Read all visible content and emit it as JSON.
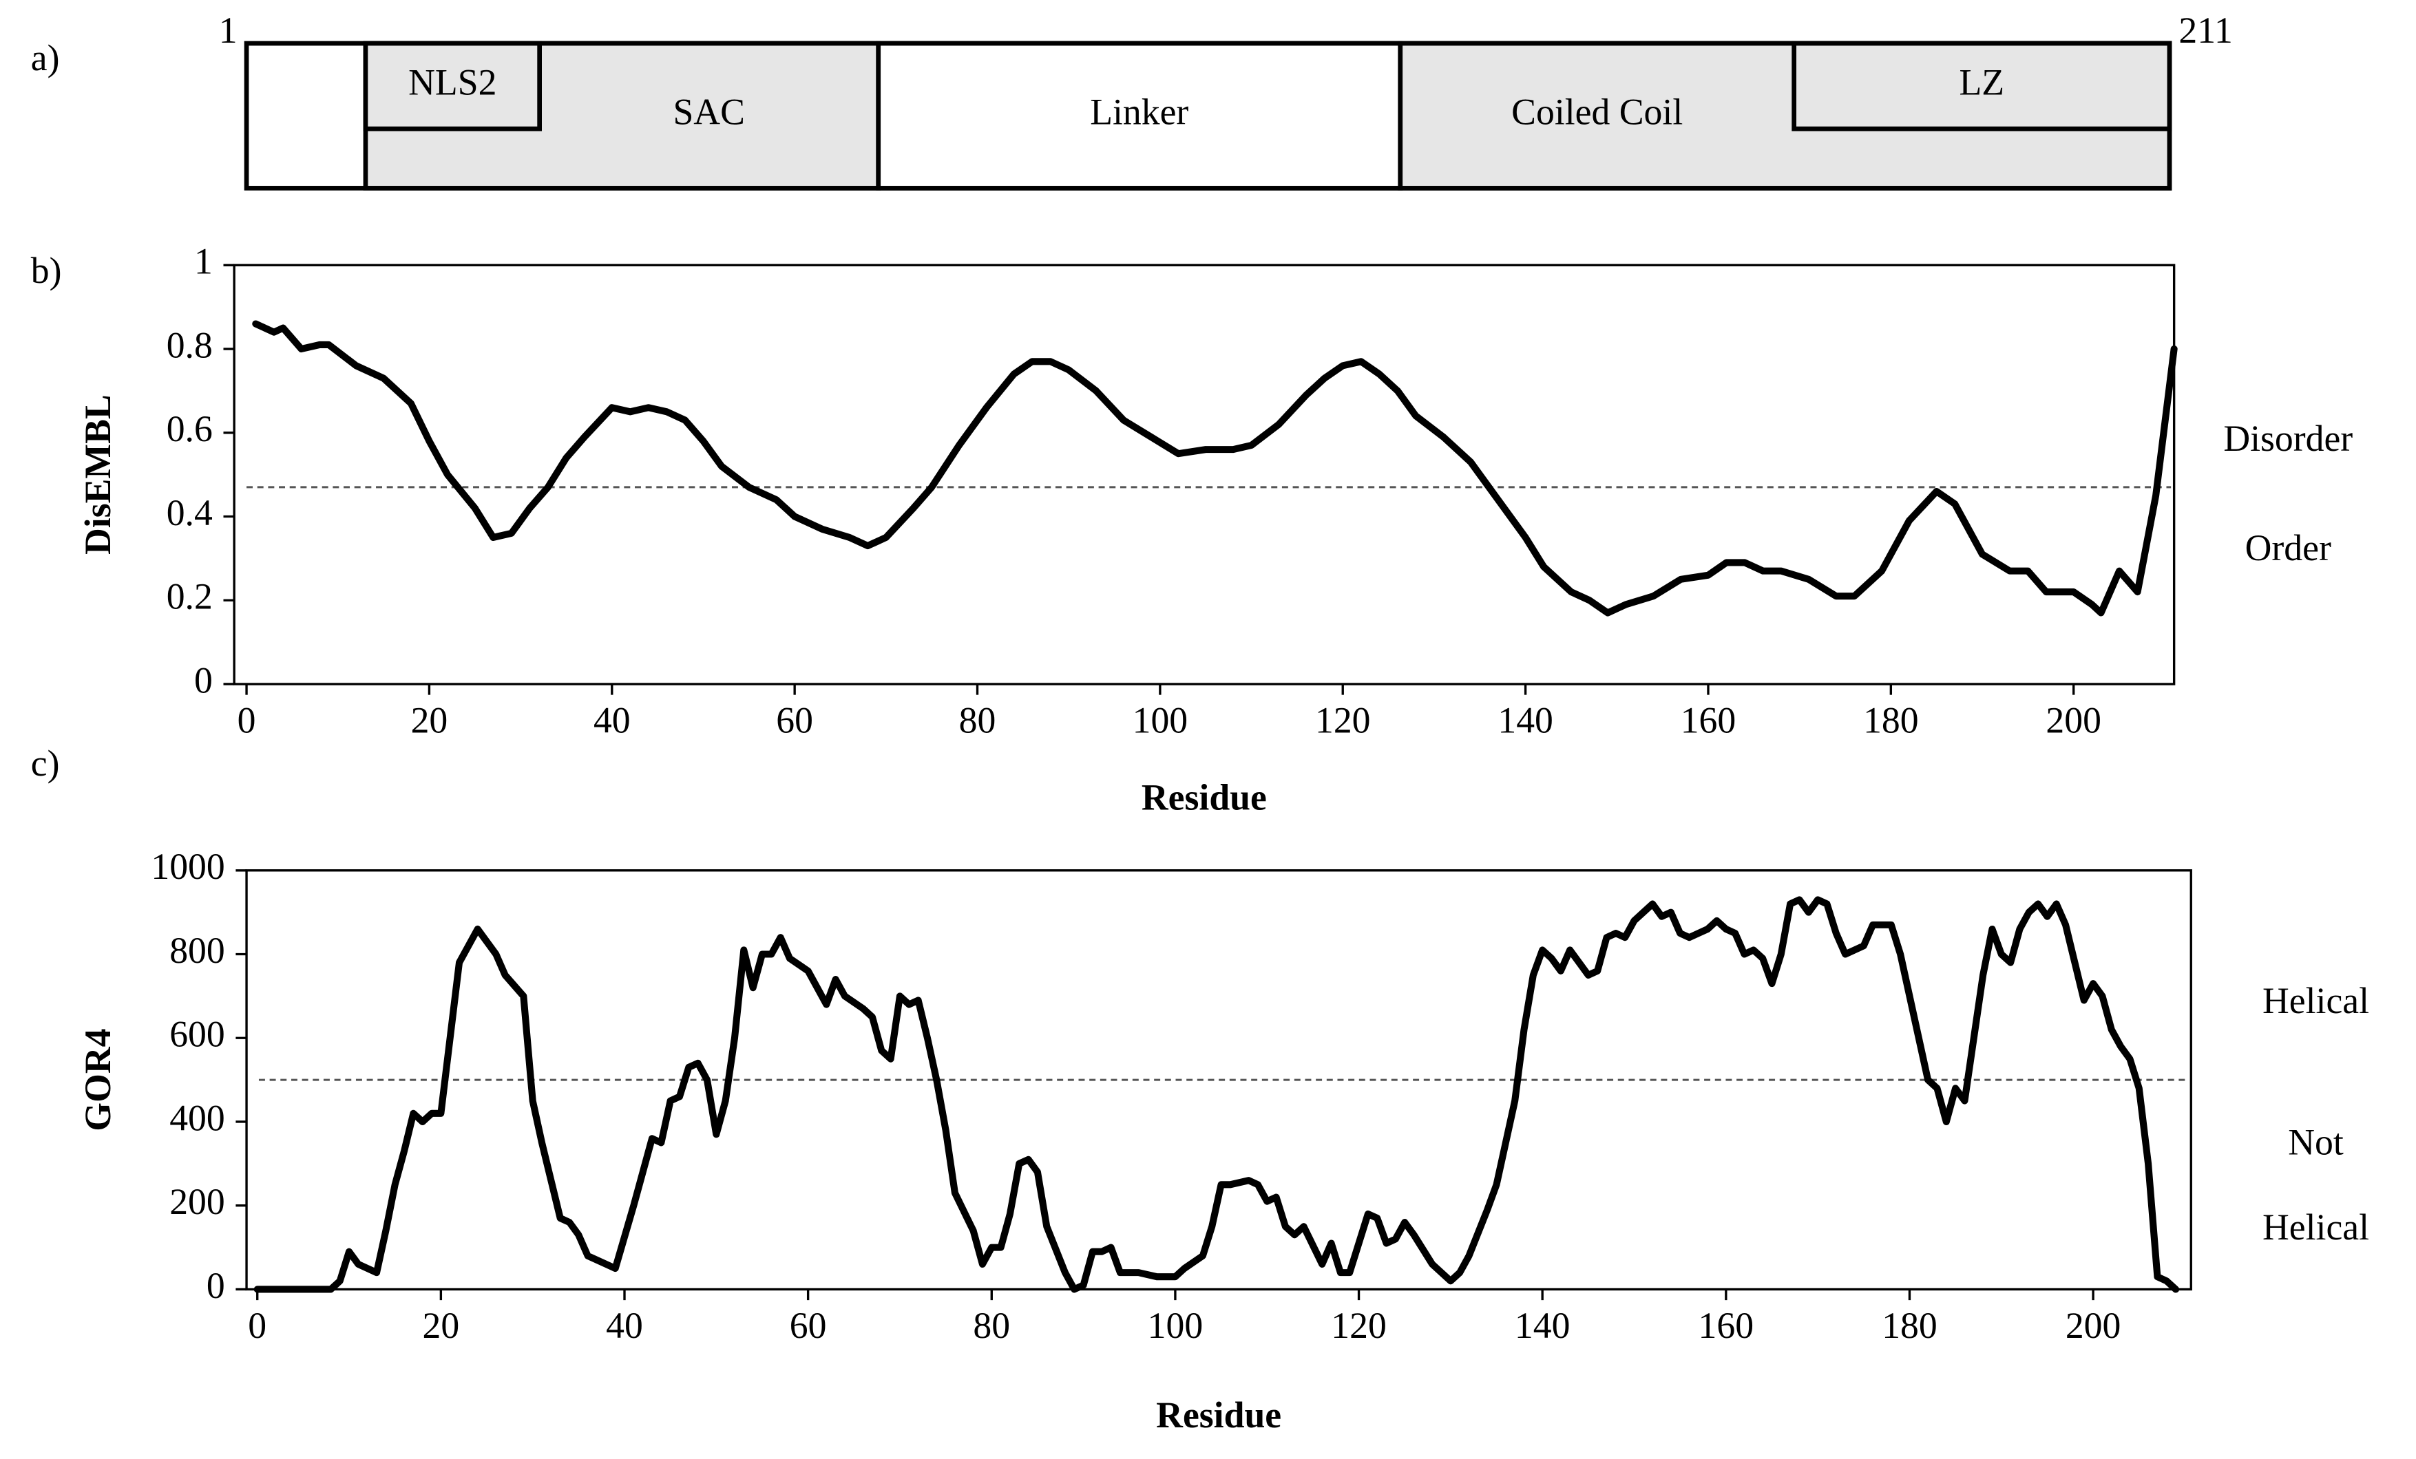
{
  "chart_data": [
    {
      "type": "domain-map",
      "panel_label": "a)",
      "xlim": [
        1,
        211
      ],
      "xticks": [
        1,
        211
      ],
      "domains": [
        {
          "name": "SAC",
          "start": 14,
          "end": 70,
          "color": "#e6e6e6",
          "inset": false
        },
        {
          "name": "NLS2",
          "start": 14,
          "end": 33,
          "color": "#e6e6e6",
          "inset": true
        },
        {
          "name": "Linker",
          "start": 70,
          "end": 127,
          "color": "#ffffff",
          "inset": false
        },
        {
          "name": "Coiled Coil",
          "start": 127,
          "end": 211,
          "color": "#e6e6e6",
          "inset": false
        },
        {
          "name": "LZ",
          "start": 170,
          "end": 211,
          "color": "#e6e6e6",
          "inset": true
        }
      ]
    },
    {
      "type": "line",
      "panel_label": "b)",
      "y_label": "DisEMBL",
      "x_label": "Residue",
      "xlim": [
        0,
        211
      ],
      "xticks": [
        0,
        20,
        40,
        60,
        80,
        100,
        120,
        140,
        160,
        180,
        200
      ],
      "ylim": [
        0,
        1
      ],
      "yticks": [
        0,
        0.2,
        0.4,
        0.6,
        0.8,
        1
      ],
      "threshold": 0.47,
      "upper_label": "Disorder",
      "lower_label": [
        "Order"
      ],
      "series": [
        {
          "color": "#000000",
          "x": [
            1,
            3,
            4,
            6,
            8,
            9,
            12,
            15,
            18,
            20,
            22,
            25,
            27,
            29,
            31,
            33,
            35,
            37,
            40,
            42,
            44,
            46,
            48,
            50,
            52,
            55,
            58,
            60,
            63,
            66,
            68,
            70,
            73,
            75,
            78,
            81,
            84,
            86,
            88,
            90,
            93,
            96,
            99,
            102,
            105,
            108,
            110,
            113,
            116,
            118,
            120,
            122,
            124,
            126,
            128,
            131,
            134,
            137,
            140,
            142,
            145,
            147,
            149,
            151,
            154,
            157,
            160,
            162,
            164,
            166,
            168,
            171,
            174,
            176,
            179,
            182,
            185,
            187,
            190,
            193,
            195,
            197,
            200,
            202,
            203,
            205,
            207,
            209,
            211
          ],
          "values": [
            0.86,
            0.84,
            0.85,
            0.8,
            0.81,
            0.81,
            0.76,
            0.73,
            0.67,
            0.58,
            0.5,
            0.42,
            0.35,
            0.36,
            0.42,
            0.47,
            0.54,
            0.59,
            0.66,
            0.65,
            0.66,
            0.65,
            0.63,
            0.58,
            0.52,
            0.47,
            0.44,
            0.4,
            0.37,
            0.35,
            0.33,
            0.35,
            0.42,
            0.47,
            0.57,
            0.66,
            0.74,
            0.77,
            0.77,
            0.75,
            0.7,
            0.63,
            0.59,
            0.55,
            0.56,
            0.56,
            0.57,
            0.62,
            0.69,
            0.73,
            0.76,
            0.77,
            0.74,
            0.7,
            0.64,
            0.59,
            0.53,
            0.44,
            0.35,
            0.28,
            0.22,
            0.2,
            0.17,
            0.19,
            0.21,
            0.25,
            0.26,
            0.29,
            0.29,
            0.27,
            0.27,
            0.25,
            0.21,
            0.21,
            0.27,
            0.39,
            0.46,
            0.43,
            0.31,
            0.27,
            0.27,
            0.22,
            0.22,
            0.19,
            0.17,
            0.27,
            0.22,
            0.45,
            0.8
          ]
        }
      ]
    },
    {
      "type": "line",
      "panel_label": "c)",
      "y_label": "GOR4",
      "x_label": "Residue",
      "xlim": [
        0,
        211
      ],
      "xticks": [
        0,
        20,
        40,
        60,
        80,
        100,
        120,
        140,
        160,
        180,
        200
      ],
      "ylim": [
        0,
        1000
      ],
      "yticks": [
        0,
        200,
        400,
        600,
        800,
        1000
      ],
      "threshold": 500,
      "upper_label": "Helical",
      "lower_label": [
        "Not",
        "Helical"
      ],
      "series": [
        {
          "color": "#000000",
          "x": [
            0,
            8,
            9,
            10,
            11,
            12,
            13,
            14,
            15,
            16,
            17,
            18,
            19,
            20,
            21,
            22,
            24,
            26,
            27,
            29,
            30,
            31,
            33,
            34,
            35,
            36,
            38,
            39,
            41,
            43,
            44,
            45,
            46,
            47,
            48,
            49,
            50,
            51,
            52,
            53,
            54,
            55,
            56,
            57,
            58,
            60,
            62,
            63,
            64,
            66,
            67,
            68,
            69,
            70,
            71,
            72,
            73,
            74,
            75,
            76,
            78,
            79,
            80,
            81,
            82,
            83,
            84,
            85,
            86,
            88,
            89,
            90,
            91,
            92,
            93,
            94,
            96,
            98,
            100,
            101,
            103,
            104,
            105,
            106,
            108,
            109,
            110,
            111,
            112,
            113,
            114,
            116,
            117,
            118,
            119,
            121,
            122,
            123,
            124,
            125,
            126,
            128,
            130,
            131,
            132,
            134,
            135,
            136,
            137,
            138,
            139,
            140,
            141,
            142,
            143,
            144,
            145,
            146,
            147,
            148,
            149,
            150,
            151,
            152,
            153,
            154,
            155,
            156,
            157,
            158,
            159,
            160,
            161,
            162,
            163,
            164,
            165,
            166,
            167,
            168,
            169,
            170,
            171,
            172,
            173,
            174,
            175,
            176,
            177,
            178,
            179,
            180,
            181,
            182,
            183,
            184,
            185,
            186,
            187,
            188,
            189,
            190,
            191,
            192,
            193,
            194,
            195,
            196,
            197,
            198,
            199,
            200,
            201,
            202,
            203,
            204,
            205,
            206,
            207,
            208,
            209
          ],
          "values": [
            0,
            0,
            20,
            90,
            60,
            50,
            40,
            140,
            250,
            330,
            420,
            400,
            420,
            420,
            600,
            780,
            860,
            800,
            750,
            700,
            450,
            350,
            170,
            160,
            130,
            80,
            60,
            50,
            200,
            360,
            350,
            450,
            460,
            530,
            540,
            500,
            370,
            450,
            600,
            810,
            720,
            800,
            800,
            840,
            790,
            760,
            680,
            740,
            700,
            670,
            650,
            570,
            550,
            700,
            680,
            690,
            600,
            500,
            380,
            230,
            140,
            60,
            100,
            100,
            180,
            300,
            310,
            280,
            150,
            40,
            0,
            10,
            90,
            90,
            100,
            40,
            40,
            30,
            30,
            50,
            80,
            150,
            250,
            250,
            260,
            250,
            210,
            220,
            150,
            130,
            150,
            60,
            110,
            40,
            40,
            180,
            170,
            110,
            120,
            160,
            130,
            60,
            20,
            40,
            80,
            190,
            250,
            350,
            450,
            620,
            750,
            810,
            790,
            760,
            810,
            780,
            750,
            760,
            840,
            850,
            840,
            880,
            900,
            920,
            890,
            900,
            850,
            840,
            850,
            860,
            880,
            860,
            850,
            800,
            810,
            790,
            730,
            800,
            920,
            930,
            900,
            930,
            920,
            850,
            800,
            810,
            820,
            870,
            870,
            870,
            800,
            700,
            600,
            500,
            480,
            400,
            480,
            450,
            600,
            750,
            860,
            800,
            780,
            860,
            900,
            920,
            890,
            920,
            870,
            780,
            690,
            730,
            700,
            620,
            580,
            550,
            480,
            300,
            30,
            20,
            0
          ]
        }
      ]
    }
  ]
}
